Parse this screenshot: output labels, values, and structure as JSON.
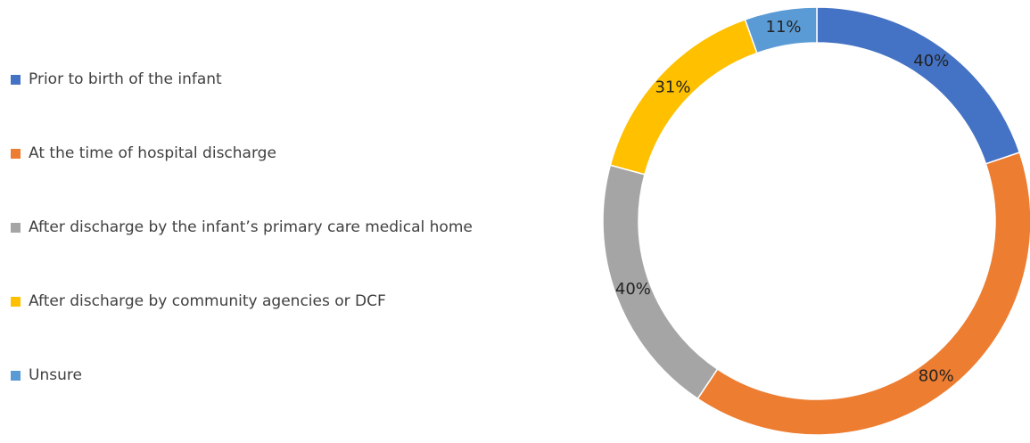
{
  "chart_data": {
    "type": "pie",
    "donut": true,
    "categories": [
      "Prior to birth of the infant",
      "At the time of hospital discharge",
      "After discharge by the infant’s primary care medical home",
      "After discharge by community agencies or DCF",
      "Unsure"
    ],
    "values": [
      40,
      80,
      40,
      31,
      11
    ],
    "value_labels": [
      "40%",
      "80%",
      "40%",
      "31%",
      "11%"
    ],
    "colors": [
      "#4472c4",
      "#ed7d31",
      "#a5a5a5",
      "#ffc000",
      "#5b9bd5"
    ],
    "legend": "left"
  }
}
